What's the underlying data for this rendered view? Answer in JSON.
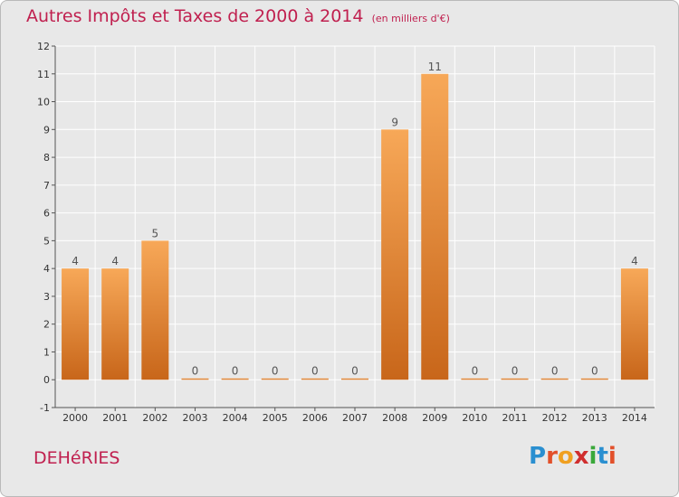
{
  "title": "Autres Impôts et Taxes de 2000 à 2014",
  "unit_note": "(en milliers d'€)",
  "place_name": "DEHéRIES",
  "logo": {
    "text": "Proxiti",
    "letters": [
      {
        "ch": "P",
        "color": "#2a8fd0"
      },
      {
        "ch": "r",
        "color": "#e2502a"
      },
      {
        "ch": "o",
        "color": "#f0a020"
      },
      {
        "ch": "x",
        "color": "#d02e2e"
      },
      {
        "ch": "i",
        "color": "#3aa83a"
      },
      {
        "ch": "t",
        "color": "#2a8fd0"
      },
      {
        "ch": "i",
        "color": "#e2502a"
      }
    ]
  },
  "colors": {
    "background": "#e8e8e8",
    "bar_top": "#f7a858",
    "bar_bottom": "#c8661a",
    "grid": "#ffffff",
    "title": "#c0204f"
  },
  "chart_data": {
    "type": "bar",
    "categories": [
      "2000",
      "2001",
      "2002",
      "2003",
      "2004",
      "2005",
      "2006",
      "2007",
      "2008",
      "2009",
      "2010",
      "2011",
      "2012",
      "2013",
      "2014"
    ],
    "values": [
      4,
      4,
      5,
      0,
      0,
      0,
      0,
      0,
      9,
      11,
      0,
      0,
      0,
      0,
      4
    ],
    "value_labels": [
      "4",
      "4",
      "5",
      "0",
      "0",
      "0",
      "0",
      "0",
      "9",
      "11",
      "0",
      "0",
      "0",
      "0",
      "4"
    ],
    "yticks": [
      -1,
      0,
      1,
      2,
      3,
      4,
      5,
      6,
      7,
      8,
      9,
      10,
      11,
      12
    ],
    "ylim": [
      -1,
      12
    ],
    "grid": true
  }
}
